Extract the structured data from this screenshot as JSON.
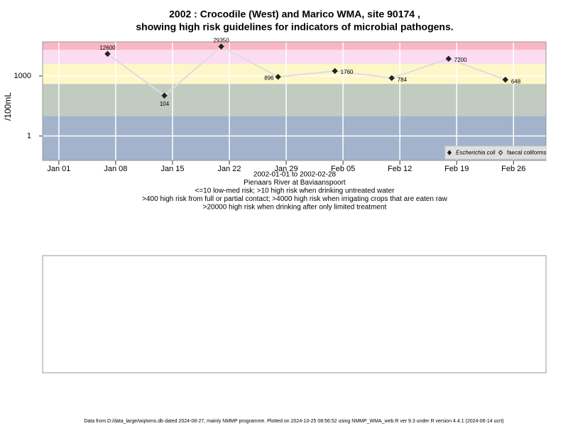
{
  "chart_data": {
    "type": "line",
    "title": [
      "2002 : Crocodile (West) and Marico WMA, site 90174 ,",
      "showing high risk guidelines for indicators of microbial pathogens."
    ],
    "ylabel": "/100mL",
    "xlabel": [
      "2002-01-01 to 2002-02-28",
      "Pienaars River at Baviaanspoort",
      "<=10 low-med risk; >10 high risk when drinking untreated water",
      ">400 high risk from full or partial contact; >4000 high risk when irrigating crops that are eaten raw",
      ">20000 high risk when drinking after only limited treatment"
    ],
    "log_y": true,
    "grid": true,
    "x": [
      "2002-01-07",
      "2002-01-14",
      "2002-01-21",
      "2002-01-28",
      "2002-02-04",
      "2002-02-11",
      "2002-02-18",
      "2002-02-25"
    ],
    "series": [
      {
        "name": "Escherichia coli",
        "color": "#222222",
        "line_color": "#dddddd",
        "marker": "filled-diamond",
        "values": [
          12600,
          104,
          29350,
          896,
          1760,
          784,
          7200,
          648
        ]
      },
      {
        "name": "faecal coliforms",
        "color": "#222222",
        "marker": "open-diamond",
        "values": [
          null,
          null,
          null,
          null,
          null,
          null,
          null,
          null
        ]
      }
    ],
    "bands": {
      "thresholds": [
        10,
        400,
        4000,
        20000
      ],
      "colors": [
        "#a3b3cc",
        "#c2cbc0",
        "#fdf7c8",
        "#fcdcf0",
        "#f9b7c3"
      ]
    },
    "xlim": [
      "2001-12-30",
      "2002-03-02"
    ],
    "xticks": [
      {
        "value": "2002-01-01",
        "label": "Jan 01"
      },
      {
        "value": "2002-01-08",
        "label": "Jan 08"
      },
      {
        "value": "2002-01-15",
        "label": "Jan 15"
      },
      {
        "value": "2002-01-22",
        "label": "Jan 22"
      },
      {
        "value": "2002-01-29",
        "label": "Jan 29"
      },
      {
        "value": "2002-02-05",
        "label": "Feb 05"
      },
      {
        "value": "2002-02-12",
        "label": "Feb 12"
      },
      {
        "value": "2002-02-19",
        "label": "Feb 19"
      },
      {
        "value": "2002-02-26",
        "label": "Feb 26"
      }
    ],
    "ylim": [
      0.06,
      50000
    ],
    "yticks": [
      1,
      1000
    ],
    "legend_position": "bottom-right"
  },
  "footer": "Data from D:/data_large/wq/wms.db dated 2024-08-27, mainly NMMP programme. Plotted on 2024-10-25 08:56:52 using NMMP_WMA_web.R ver 9.3 under R version 4.4.1 (2024-06-14 ucrt)"
}
